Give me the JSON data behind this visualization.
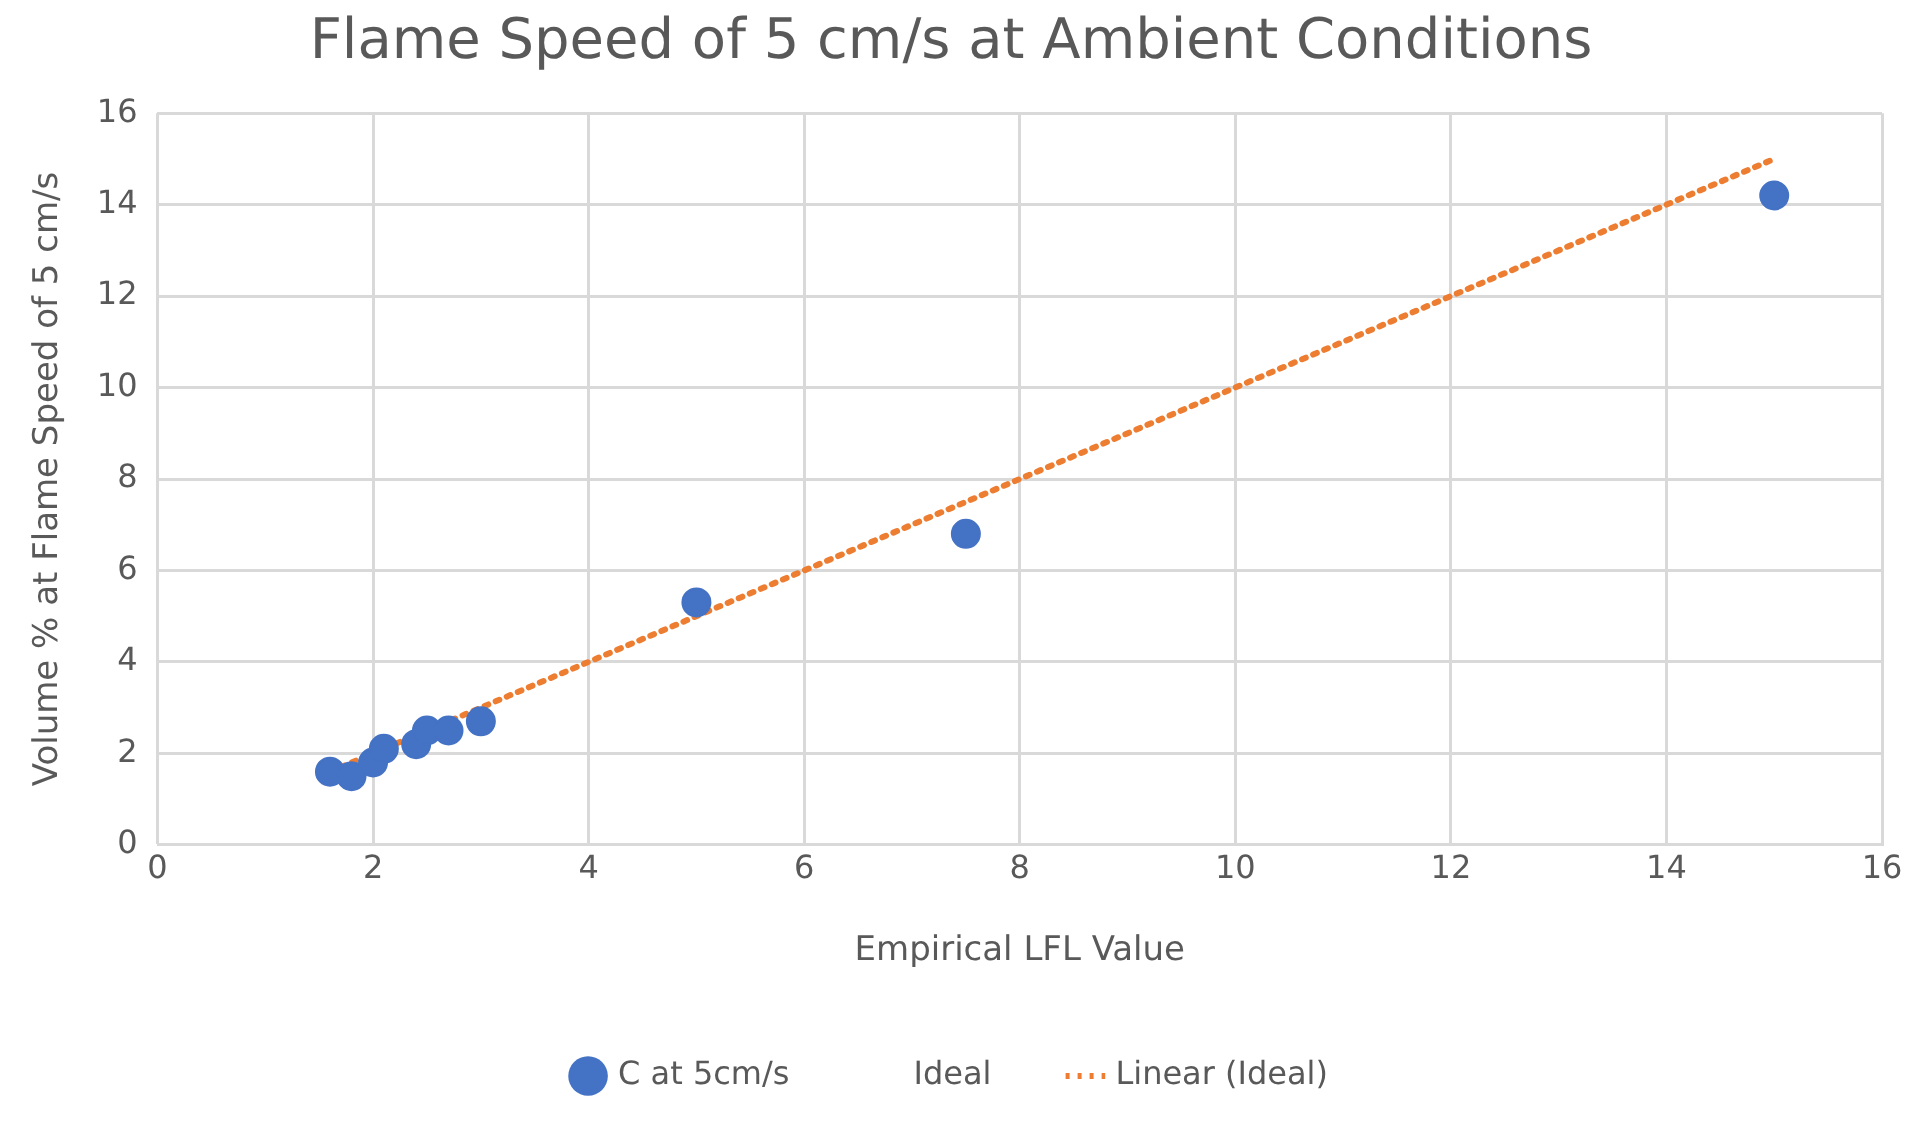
{
  "chart_data": {
    "type": "scatter",
    "title": "Flame Speed of 5 cm/s at Ambient Conditions",
    "xlabel": "Empirical LFL Value",
    "ylabel": "Volume % at Flame Speed of 5 cm/s",
    "xlim": [
      0,
      16
    ],
    "xticks": [
      0,
      2,
      4,
      6,
      8,
      10,
      12,
      14,
      16
    ],
    "ylim": [
      0,
      16
    ],
    "yticks": [
      0,
      2,
      4,
      6,
      8,
      10,
      12,
      14,
      16
    ],
    "grid": true,
    "legend": "bottom",
    "annotations": [
      "Ideal"
    ],
    "series": [
      {
        "name": "C at 5cm/s",
        "color": "#4472c4",
        "marker": "circle",
        "x": [
          1.6,
          1.8,
          2.0,
          2.1,
          2.4,
          2.5,
          2.7,
          3.0,
          5.0,
          7.5,
          15.0
        ],
        "values": [
          1.6,
          1.5,
          1.8,
          2.1,
          2.2,
          2.5,
          2.5,
          2.7,
          5.3,
          6.8,
          14.2
        ]
      },
      {
        "name": "Linear (Ideal)",
        "type": "line",
        "color": "#ed7d31",
        "marker": "none",
        "line_style": "dotted",
        "x": [
          1.6,
          15
        ],
        "values": [
          1.6,
          15
        ]
      }
    ]
  }
}
